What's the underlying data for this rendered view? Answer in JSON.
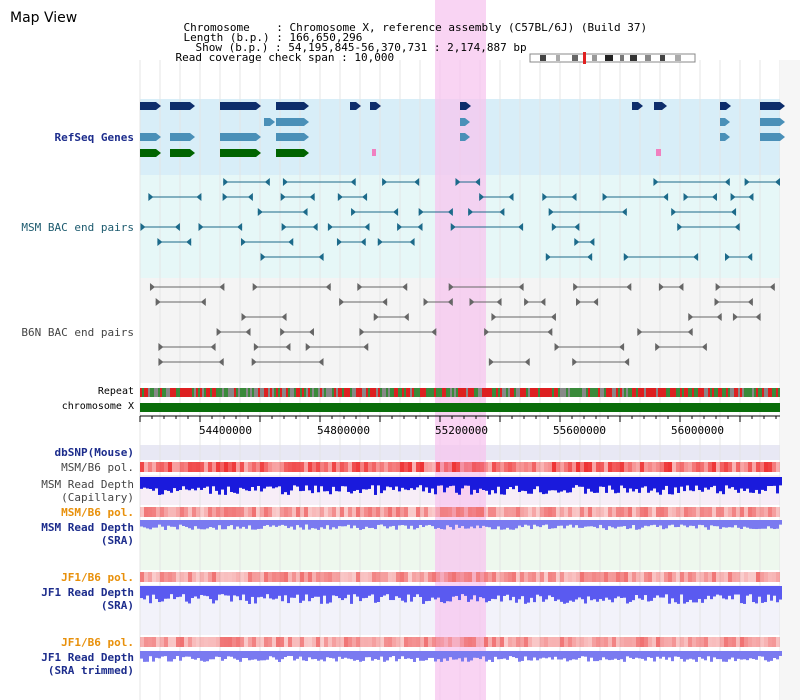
{
  "app_title": "Map View",
  "info": {
    "chromosome_label": "Chromosome",
    "chromosome_value": "Chromosome X, reference assembly (C57BL/6J) (Build 37)",
    "length_label": "Length (b.p.)",
    "length_value": "166,650,296",
    "show_label": "Show (b.p.)",
    "show_value": "54,195,845-56,370,731 : 2,174,887 bp",
    "coverage_label": "Read coverage check span",
    "coverage_value": "10,000"
  },
  "tracks": {
    "refseq_genes": "RefSeq Genes",
    "msm_bac": "MSM BAC end pairs",
    "b6n_bac": "B6N BAC end pairs",
    "repeat": "Repeat",
    "chromosome": "chromosome X",
    "dbsnp": "dbSNP(Mouse)",
    "msm_b6_pol_1": "MSM/B6 pol.",
    "msm_depth_cap_1": "MSM Read Depth",
    "msm_depth_cap_2": "(Capillary)",
    "msm_b6_pol_2": "MSM/B6 pol.",
    "msm_depth_sra_1": "MSM Read Depth",
    "msm_depth_sra_2": "(SRA)",
    "jf1_b6_pol_1": "JF1/B6 pol.",
    "jf1_depth_sra_1": "JF1 Read Depth",
    "jf1_depth_sra_2": "(SRA)",
    "jf1_b6_pol_2": "JF1/B6 pol.",
    "jf1_depth_trim_1": "JF1 Read Depth",
    "jf1_depth_trim_2": "(SRA trimmed)"
  },
  "axis_ticks": [
    "54400000",
    "54800000",
    "55200000",
    "55600000",
    "56000000"
  ],
  "colors": {
    "gene_dark": "#0d2d6b",
    "gene_mid": "#4a90b8",
    "gene_green": "#006400",
    "refseq_bg": "#d8eef8",
    "msm_bg": "#e6f7f7",
    "b6n_bg": "#f4f4f4",
    "highlight": "#f7c6ef",
    "label_blue": "#1c2c8c",
    "label_orange": "#e8900a",
    "label_grey": "#444444",
    "chrom_green": "#0a6e0a",
    "depth_blue": "#1a1adc",
    "depth_light": "#7a7af0",
    "pol_red": "#ee3a3a"
  }
}
